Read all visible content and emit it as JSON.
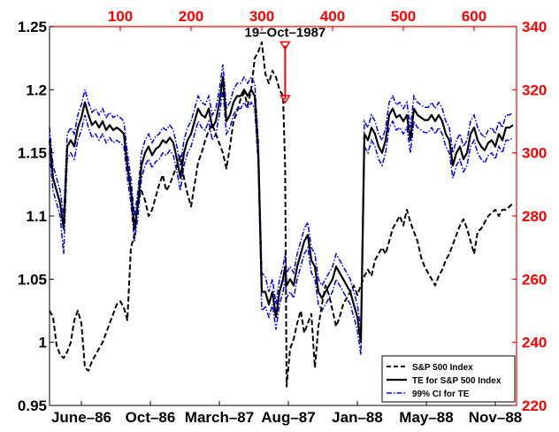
{
  "chart_data": {
    "type": "line",
    "colors": {
      "axis_right": "#ff0000",
      "sp500": "#000000",
      "te": "#000000",
      "ci": "#0000ff"
    },
    "x_bottom": {
      "tick_labels": [
        "June–86",
        "Oct–86",
        "March–87",
        "Aug–87",
        "Jan–88",
        "May–88",
        "Nov–88"
      ],
      "range": [
        0,
        660
      ]
    },
    "x_top": {
      "ticks": [
        100,
        200,
        300,
        400,
        500,
        600
      ],
      "range": [
        0,
        660
      ]
    },
    "y_left": {
      "ticks": [
        0.95,
        1,
        1.05,
        1.1,
        1.15,
        1.2,
        1.25
      ],
      "tick_labels": [
        "0.95",
        "1",
        "1.05",
        "1.1",
        "1.15",
        "1.2",
        "1.25"
      ],
      "range": [
        0.95,
        1.25
      ]
    },
    "y_right": {
      "ticks": [
        220,
        240,
        260,
        280,
        300,
        320,
        340
      ],
      "range": [
        220,
        340
      ]
    },
    "annotation": {
      "text": "19–Oct–1987",
      "x": 333,
      "y_right_from": 334,
      "y_right_to": 317
    },
    "legend": {
      "position": "bottom-right",
      "entries": [
        "S&P 500 Index",
        "TE for S&P 500 Index",
        "99% CI for TE"
      ]
    },
    "series": [
      {
        "name": "S&P 500 Index",
        "axis": "right",
        "style": "dashed",
        "x": [
          0,
          5,
          10,
          15,
          20,
          25,
          30,
          35,
          40,
          45,
          50,
          55,
          60,
          65,
          70,
          75,
          80,
          85,
          90,
          95,
          100,
          105,
          110,
          115,
          120,
          125,
          130,
          135,
          140,
          145,
          150,
          155,
          160,
          165,
          170,
          175,
          180,
          185,
          190,
          195,
          200,
          205,
          210,
          215,
          220,
          225,
          230,
          235,
          240,
          245,
          250,
          255,
          260,
          265,
          270,
          275,
          280,
          285,
          290,
          295,
          300,
          305,
          310,
          315,
          320,
          325,
          330,
          333,
          335,
          340,
          345,
          350,
          355,
          360,
          365,
          370,
          375,
          380,
          385,
          390,
          395,
          400,
          405,
          410,
          415,
          420,
          425,
          430,
          435,
          440,
          445,
          450,
          455,
          460,
          465,
          470,
          475,
          480,
          485,
          490,
          495,
          500,
          505,
          510,
          515,
          520,
          525,
          530,
          535,
          540,
          545,
          550,
          555,
          560,
          565,
          570,
          575,
          580,
          585,
          590,
          595,
          600,
          605,
          610,
          615,
          620,
          625,
          630,
          635,
          640,
          645,
          650,
          655
        ],
        "values": [
          250,
          248,
          239,
          236,
          235,
          237,
          240,
          247,
          250,
          246,
          232,
          231,
          234,
          236,
          238,
          240,
          243,
          246,
          249,
          252,
          253,
          251,
          247,
          270,
          274,
          285,
          288,
          285,
          280,
          282,
          286,
          290,
          293,
          288,
          290,
          293,
          296,
          299,
          292,
          287,
          283,
          290,
          297,
          300,
          304,
          307,
          309,
          306,
          303,
          300,
          295,
          302,
          310,
          313,
          317,
          319,
          315,
          320,
          330,
          332,
          335,
          325,
          322,
          326,
          324,
          320,
          318,
          295,
          226,
          238,
          241,
          246,
          250,
          243,
          246,
          249,
          232,
          245,
          252,
          258,
          255,
          250,
          245,
          248,
          252,
          254,
          256,
          258,
          255,
          258,
          261,
          263,
          261,
          266,
          268,
          270,
          268,
          272,
          276,
          278,
          280,
          277,
          282,
          278,
          275,
          272,
          267,
          264,
          262,
          260,
          258,
          261,
          263,
          266,
          268,
          271,
          274,
          277,
          279,
          276,
          272,
          268,
          275,
          276,
          278,
          280,
          281,
          282,
          280,
          282,
          282,
          283,
          284
        ]
      },
      {
        "name": "TE for S&P 500 Index",
        "axis": "left",
        "style": "solid",
        "x": [
          0,
          5,
          10,
          15,
          20,
          25,
          30,
          35,
          40,
          45,
          50,
          55,
          60,
          65,
          70,
          75,
          80,
          85,
          90,
          95,
          100,
          105,
          110,
          115,
          120,
          125,
          130,
          135,
          140,
          145,
          150,
          155,
          160,
          165,
          170,
          175,
          180,
          185,
          190,
          195,
          200,
          205,
          210,
          215,
          220,
          225,
          230,
          235,
          240,
          245,
          250,
          255,
          260,
          265,
          270,
          275,
          280,
          285,
          290,
          295,
          300,
          305,
          310,
          315,
          320,
          325,
          330,
          333,
          335,
          340,
          345,
          350,
          355,
          360,
          365,
          370,
          375,
          380,
          385,
          390,
          395,
          400,
          405,
          410,
          415,
          420,
          425,
          430,
          435,
          440,
          445,
          450,
          455,
          460,
          465,
          470,
          475,
          480,
          485,
          490,
          495,
          500,
          505,
          510,
          515,
          520,
          525,
          530,
          535,
          540,
          545,
          550,
          555,
          560,
          565,
          570,
          575,
          580,
          585,
          590,
          595,
          600,
          605,
          610,
          615,
          620,
          625,
          630,
          635,
          640,
          645,
          650,
          655
        ],
        "values": [
          1.16,
          1.13,
          1.12,
          1.11,
          1.09,
          1.155,
          1.16,
          1.155,
          1.17,
          1.178,
          1.19,
          1.18,
          1.172,
          1.175,
          1.17,
          1.175,
          1.168,
          1.172,
          1.168,
          1.17,
          1.168,
          1.165,
          1.14,
          1.12,
          1.09,
          1.11,
          1.14,
          1.15,
          1.155,
          1.148,
          1.153,
          1.155,
          1.16,
          1.158,
          1.162,
          1.158,
          1.145,
          1.13,
          1.15,
          1.16,
          1.165,
          1.175,
          1.185,
          1.18,
          1.178,
          1.185,
          1.17,
          1.175,
          1.19,
          1.21,
          1.175,
          1.18,
          1.19,
          1.195,
          1.195,
          1.2,
          1.195,
          1.2,
          1.195,
          1.15,
          1.04,
          1.04,
          1.03,
          1.04,
          1.02,
          1.04,
          1.05,
          1.06,
          1.045,
          1.05,
          1.045,
          1.06,
          1.07,
          1.08,
          1.085,
          1.065,
          1.06,
          1.04,
          1.035,
          1.04,
          1.045,
          1.05,
          1.06,
          1.055,
          1.05,
          1.045,
          1.04,
          1.03,
          1.02,
          1.0,
          1.165,
          1.16,
          1.17,
          1.165,
          1.155,
          1.15,
          1.16,
          1.18,
          1.185,
          1.178,
          1.18,
          1.175,
          1.18,
          1.16,
          1.185,
          1.18,
          1.178,
          1.176,
          1.176,
          1.18,
          1.175,
          1.18,
          1.175,
          1.165,
          1.16,
          1.14,
          1.15,
          1.155,
          1.145,
          1.15,
          1.165,
          1.17,
          1.16,
          1.155,
          1.152,
          1.158,
          1.16,
          1.155,
          1.165,
          1.16,
          1.17,
          1.17,
          1.172
        ],
        "ci_low": [
          1.15,
          1.12,
          1.11,
          1.1,
          1.07,
          1.145,
          1.15,
          1.145,
          1.16,
          1.168,
          1.18,
          1.17,
          1.162,
          1.165,
          1.16,
          1.165,
          1.158,
          1.162,
          1.158,
          1.16,
          1.158,
          1.155,
          1.13,
          1.11,
          1.08,
          1.1,
          1.13,
          1.14,
          1.145,
          1.138,
          1.143,
          1.145,
          1.15,
          1.148,
          1.152,
          1.148,
          1.135,
          1.12,
          1.14,
          1.15,
          1.155,
          1.165,
          1.175,
          1.17,
          1.168,
          1.175,
          1.16,
          1.165,
          1.18,
          1.2,
          1.165,
          1.17,
          1.18,
          1.185,
          1.185,
          1.19,
          1.185,
          1.19,
          1.185,
          1.14,
          1.025,
          1.028,
          1.02,
          1.03,
          1.01,
          1.03,
          1.04,
          1.05,
          1.035,
          1.04,
          1.035,
          1.05,
          1.06,
          1.07,
          1.075,
          1.055,
          1.05,
          1.03,
          1.025,
          1.03,
          1.035,
          1.04,
          1.05,
          1.045,
          1.04,
          1.035,
          1.03,
          1.02,
          1.01,
          0.99,
          1.155,
          1.15,
          1.16,
          1.155,
          1.145,
          1.14,
          1.15,
          1.17,
          1.175,
          1.168,
          1.17,
          1.165,
          1.17,
          1.15,
          1.175,
          1.17,
          1.168,
          1.166,
          1.166,
          1.17,
          1.165,
          1.17,
          1.165,
          1.155,
          1.15,
          1.13,
          1.14,
          1.145,
          1.135,
          1.14,
          1.155,
          1.16,
          1.15,
          1.145,
          1.142,
          1.148,
          1.15,
          1.145,
          1.155,
          1.15,
          1.16,
          1.16,
          1.162
        ],
        "ci_high": [
          1.17,
          1.14,
          1.13,
          1.12,
          1.1,
          1.165,
          1.17,
          1.165,
          1.18,
          1.188,
          1.2,
          1.19,
          1.182,
          1.185,
          1.18,
          1.185,
          1.178,
          1.182,
          1.178,
          1.18,
          1.178,
          1.175,
          1.15,
          1.13,
          1.1,
          1.12,
          1.15,
          1.16,
          1.165,
          1.158,
          1.163,
          1.165,
          1.17,
          1.168,
          1.172,
          1.168,
          1.155,
          1.14,
          1.16,
          1.17,
          1.175,
          1.185,
          1.195,
          1.19,
          1.188,
          1.195,
          1.18,
          1.185,
          1.2,
          1.22,
          1.185,
          1.19,
          1.2,
          1.205,
          1.205,
          1.21,
          1.205,
          1.21,
          1.205,
          1.16,
          1.055,
          1.052,
          1.04,
          1.05,
          1.03,
          1.05,
          1.06,
          1.07,
          1.055,
          1.06,
          1.055,
          1.07,
          1.08,
          1.09,
          1.095,
          1.075,
          1.07,
          1.05,
          1.045,
          1.05,
          1.055,
          1.06,
          1.07,
          1.065,
          1.06,
          1.055,
          1.05,
          1.04,
          1.03,
          1.01,
          1.175,
          1.17,
          1.18,
          1.175,
          1.165,
          1.16,
          1.17,
          1.19,
          1.195,
          1.188,
          1.19,
          1.185,
          1.19,
          1.17,
          1.195,
          1.19,
          1.188,
          1.186,
          1.186,
          1.19,
          1.185,
          1.19,
          1.185,
          1.175,
          1.17,
          1.15,
          1.16,
          1.165,
          1.155,
          1.16,
          1.175,
          1.18,
          1.17,
          1.165,
          1.162,
          1.168,
          1.17,
          1.165,
          1.175,
          1.17,
          1.18,
          1.18,
          1.182
        ]
      },
      {
        "name": "99% CI for TE",
        "axis": "left",
        "style": "dash-dot",
        "band_of": "TE for S&P 500 Index"
      }
    ]
  }
}
